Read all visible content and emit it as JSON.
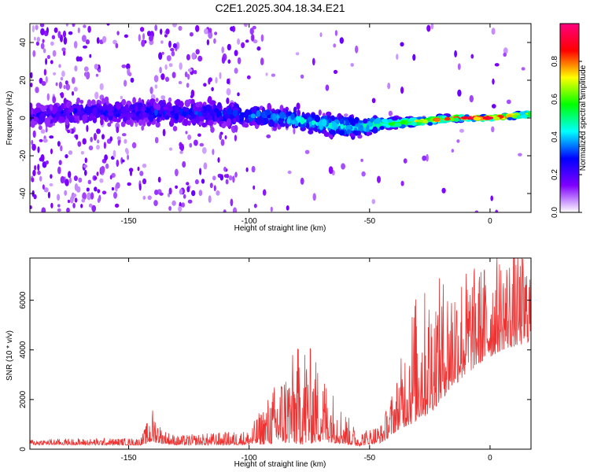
{
  "title": "C2E1.2025.304.18.34.E21",
  "chart_data": [
    {
      "type": "heatmap",
      "xlabel": "Height of straight line (km)",
      "ylabel": "Frequency (Hz)",
      "xlim": [
        -191,
        17
      ],
      "ylim": [
        -50,
        50
      ],
      "xticks": [
        -150,
        -100,
        -50,
        0
      ],
      "yticks": [
        -40,
        -20,
        0,
        20,
        40
      ],
      "colorbar": {
        "label": "Normalized spectral amplitude",
        "range": [
          0,
          1
        ],
        "ticks": [
          "0.0",
          "0.2",
          "0.4",
          "0.6",
          "0.8"
        ],
        "tick_values": [
          0.0,
          0.2,
          0.4,
          0.6,
          0.8
        ],
        "colormap": [
          "#ffffff",
          "#8000ff",
          "#0000ff",
          "#00ffff",
          "#00ff00",
          "#ffff00",
          "#ff0000",
          "#ff0080"
        ]
      },
      "ridge": [
        {
          "x": -190,
          "center": 2,
          "spread": 6,
          "amp": 0.22
        },
        {
          "x": -170,
          "center": 3,
          "spread": 6,
          "amp": 0.24
        },
        {
          "x": -150,
          "center": 3,
          "spread": 6,
          "amp": 0.25
        },
        {
          "x": -130,
          "center": 3,
          "spread": 6,
          "amp": 0.28
        },
        {
          "x": -110,
          "center": 2,
          "spread": 6,
          "amp": 0.3
        },
        {
          "x": -95,
          "center": 1,
          "spread": 5,
          "amp": 0.36
        },
        {
          "x": -80,
          "center": -1,
          "spread": 5,
          "amp": 0.42
        },
        {
          "x": -65,
          "center": -4,
          "spread": 5,
          "amp": 0.45
        },
        {
          "x": -55,
          "center": -5,
          "spread": 5,
          "amp": 0.42
        },
        {
          "x": -45,
          "center": -3,
          "spread": 3,
          "amp": 0.55
        },
        {
          "x": -30,
          "center": -2,
          "spread": 2,
          "amp": 0.7
        },
        {
          "x": -15,
          "center": 0,
          "spread": 1.5,
          "amp": 0.85
        },
        {
          "x": 0,
          "center": 0,
          "spread": 1,
          "amp": 0.95
        },
        {
          "x": 17,
          "center": 2,
          "spread": 1.5,
          "amp": 0.7
        }
      ]
    },
    {
      "type": "line",
      "xlabel": "Height of straight line (km)",
      "ylabel": "SNR (10 * v/v)",
      "xlim": [
        -191,
        17
      ],
      "ylim": [
        0,
        7700
      ],
      "xticks": [
        -150,
        -100,
        -50,
        0
      ],
      "yticks": [
        0,
        2000,
        4000,
        6000
      ],
      "color": "#ee3333",
      "envelope": [
        {
          "x": -191,
          "base": 250,
          "amp": 120
        },
        {
          "x": -145,
          "base": 250,
          "amp": 150
        },
        {
          "x": -140,
          "base": 700,
          "amp": 700
        },
        {
          "x": -136,
          "base": 400,
          "amp": 300
        },
        {
          "x": -130,
          "base": 280,
          "amp": 200
        },
        {
          "x": -100,
          "base": 350,
          "amp": 300
        },
        {
          "x": -92,
          "base": 800,
          "amp": 1000
        },
        {
          "x": -85,
          "base": 1200,
          "amp": 1600
        },
        {
          "x": -77,
          "base": 1500,
          "amp": 2200
        },
        {
          "x": -70,
          "base": 1200,
          "amp": 1500
        },
        {
          "x": -62,
          "base": 700,
          "amp": 800
        },
        {
          "x": -55,
          "base": 300,
          "amp": 300
        },
        {
          "x": -45,
          "base": 500,
          "amp": 400
        },
        {
          "x": -38,
          "base": 1500,
          "amp": 1200
        },
        {
          "x": -32,
          "base": 2600,
          "amp": 2600
        },
        {
          "x": -25,
          "base": 3000,
          "amp": 2600
        },
        {
          "x": -15,
          "base": 4000,
          "amp": 2400
        },
        {
          "x": -5,
          "base": 4600,
          "amp": 2000
        },
        {
          "x": 5,
          "base": 5200,
          "amp": 2000
        },
        {
          "x": 17,
          "base": 5400,
          "amp": 1800
        }
      ]
    }
  ]
}
